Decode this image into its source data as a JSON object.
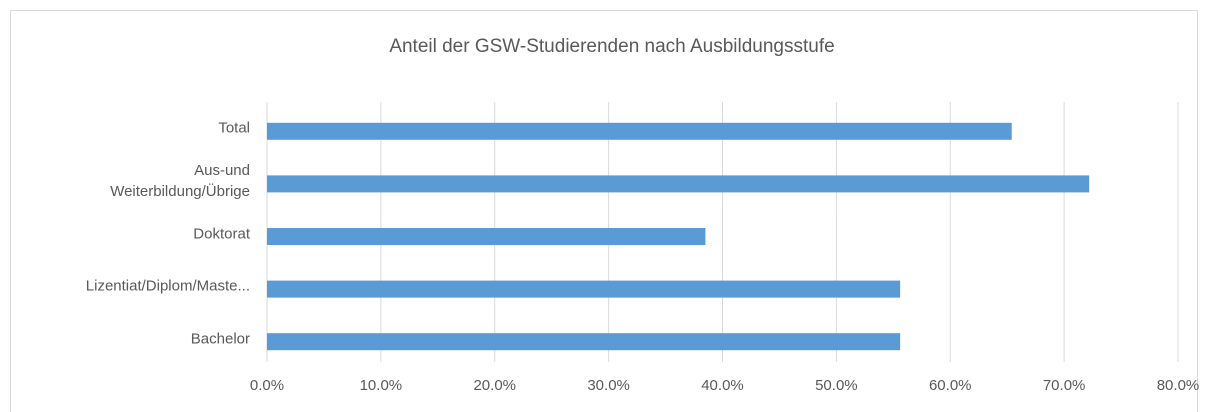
{
  "chart_data": {
    "type": "bar",
    "orientation": "horizontal",
    "title": "Anteil der GSW-Studierenden nach Ausbildungsstufe",
    "categories": [
      "Total",
      "Aus-und\nWeiterbildung/Übrige",
      "Doktorat",
      "Lizentiat/Diplom/Maste...",
      "Bachelor"
    ],
    "values": [
      65.4,
      72.2,
      38.5,
      55.6,
      55.6
    ],
    "color": "#5b9bd5",
    "xlim": [
      0,
      80
    ],
    "xticks": [
      {
        "value": 0,
        "label": "0.0%"
      },
      {
        "value": 10,
        "label": "10.0%"
      },
      {
        "value": 20,
        "label": "20.0%"
      },
      {
        "value": 30,
        "label": "30.0%"
      },
      {
        "value": 40,
        "label": "40.0%"
      },
      {
        "value": 50,
        "label": "50.0%"
      },
      {
        "value": 60,
        "label": "60.0%"
      },
      {
        "value": 70,
        "label": "70.0%"
      },
      {
        "value": 80,
        "label": "80.0%"
      }
    ],
    "grid": true
  }
}
